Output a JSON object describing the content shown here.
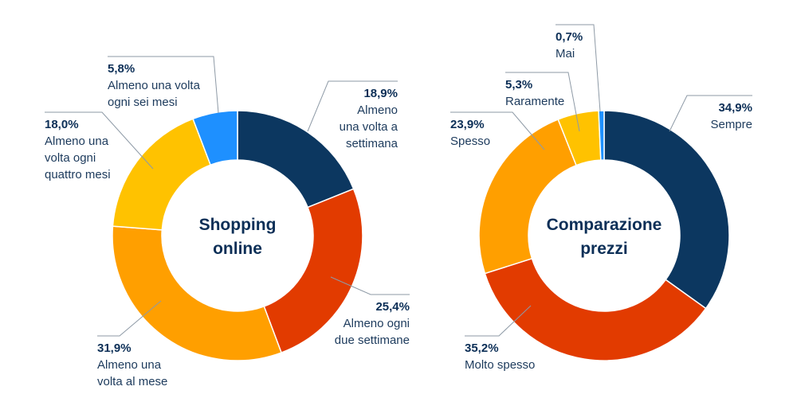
{
  "chart_data": [
    {
      "type": "pie",
      "center_label": [
        "Shopping",
        "online"
      ],
      "slices": [
        {
          "label": [
            "Almeno",
            "una volta a",
            "settimana"
          ],
          "value": 18.9,
          "value_text": "18,9%",
          "color": "#0c3760"
        },
        {
          "label": [
            "Almeno ogni",
            "due settimane"
          ],
          "value": 25.4,
          "value_text": "25,4%",
          "color": "#e23b00"
        },
        {
          "label": [
            "Almeno una",
            "volta al mese"
          ],
          "value": 31.9,
          "value_text": "31,9%",
          "color": "#ff9f00"
        },
        {
          "label": [
            "Almeno una",
            "volta ogni",
            "quattro mesi"
          ],
          "value": 18.0,
          "value_text": "18,0%",
          "color": "#ffc200"
        },
        {
          "label": [
            "Almeno una volta",
            "ogni sei mesi"
          ],
          "value": 5.8,
          "value_text": "5,8%",
          "color": "#1e90ff"
        }
      ]
    },
    {
      "type": "pie",
      "center_label": [
        "Comparazione",
        "prezzi"
      ],
      "slices": [
        {
          "label": [
            "Sempre"
          ],
          "value": 34.9,
          "value_text": "34,9%",
          "color": "#0c3760"
        },
        {
          "label": [
            "Molto spesso"
          ],
          "value": 35.2,
          "value_text": "35,2%",
          "color": "#e23b00"
        },
        {
          "label": [
            "Spesso"
          ],
          "value": 23.9,
          "value_text": "23,9%",
          "color": "#ff9f00"
        },
        {
          "label": [
            "Raramente"
          ],
          "value": 5.3,
          "value_text": "5,3%",
          "color": "#ffc200"
        },
        {
          "label": [
            "Mai"
          ],
          "value": 0.7,
          "value_text": "0,7%",
          "color": "#1e90ff"
        }
      ]
    }
  ]
}
